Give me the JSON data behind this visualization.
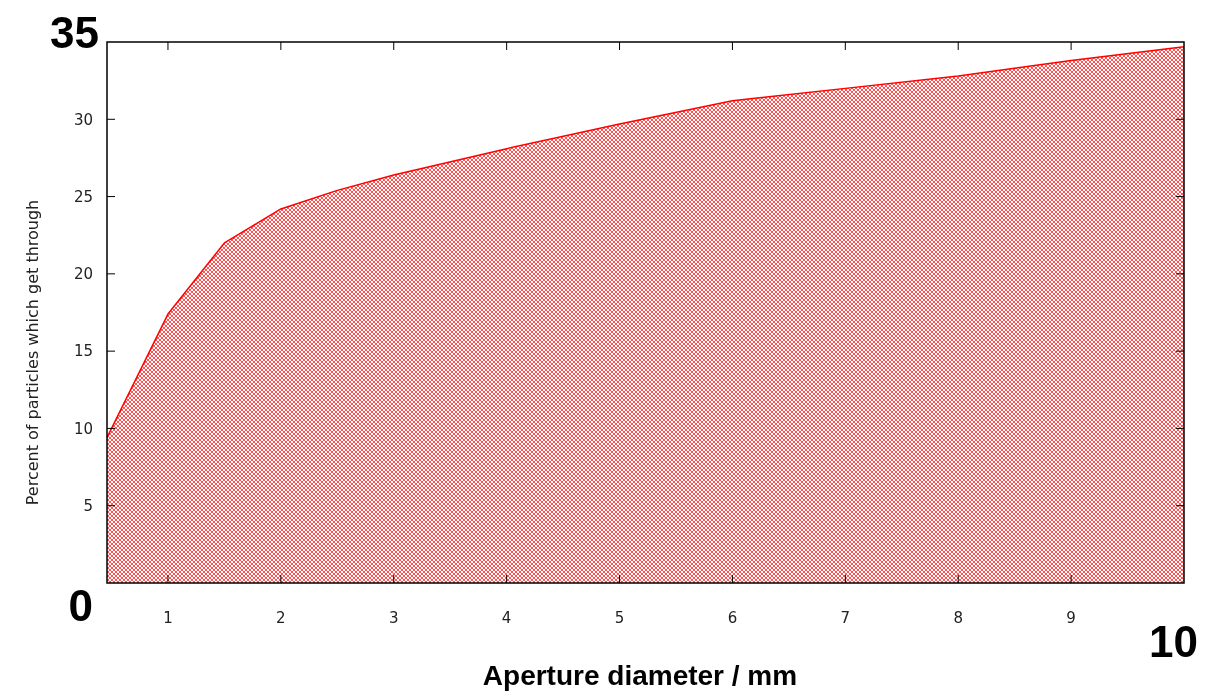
{
  "chart_data": {
    "type": "area",
    "xlabel": "Aperture diameter / mm",
    "ylabel": "Percent of particles which get through",
    "x": [
      0.46,
      1,
      1.5,
      2,
      2.5,
      3,
      4,
      5,
      6,
      7,
      8,
      9,
      10
    ],
    "series": [
      {
        "color": "#ff0000",
        "values": [
          9.4,
          17.4,
          22,
          24.2,
          25.4,
          26.4,
          28.1,
          29.7,
          31.2,
          32,
          32.8,
          33.8,
          34.7
        ]
      }
    ],
    "xlim": [
      0.46,
      10
    ],
    "xticks": [
      1,
      2,
      3,
      4,
      5,
      6,
      7,
      8,
      9
    ],
    "ylim": [
      0,
      35
    ],
    "yticks": [
      5,
      10,
      15,
      20,
      25,
      30
    ],
    "annotations": [
      "0",
      "10",
      "35"
    ],
    "grid": false
  }
}
